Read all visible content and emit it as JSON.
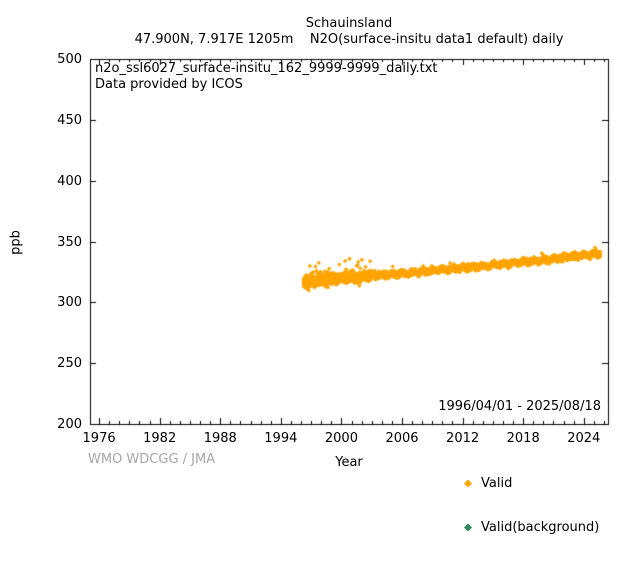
{
  "chart_data": {
    "type": "scatter",
    "title": "Schauinsland",
    "subtitle": "47.900N, 7.917E 1205m    N2O(surface-insitu data1 default) daily",
    "xlabel": "Year",
    "ylabel": "ppb",
    "xlim": [
      1975.1,
      2026.4
    ],
    "ylim": [
      200,
      500
    ],
    "xticks": [
      1976,
      1982,
      1988,
      1994,
      2000,
      2006,
      2012,
      2018,
      2024
    ],
    "x_minor_tick_step_years": 1,
    "yticks": [
      200,
      250,
      300,
      350,
      400,
      450,
      500
    ],
    "grid": false,
    "legend_position": "below-plot-right",
    "annotations": {
      "dataset_file": "n2o_ssl6027_surface-insitu_162_9999-9999_daily.txt",
      "provider": "Data provided by ICOS",
      "date_range": "1996/04/01 - 2025/08/18"
    },
    "attribution": "WMO WDCGG / JMA",
    "attribution_color": "#a6a6a6",
    "series": [
      {
        "name": "Valid",
        "color": "#ffa500",
        "marker": "diamond",
        "cadence": "daily",
        "x_range": [
          1996.25,
          2025.63
        ],
        "trend": {
          "years": [
            1996.25,
            1998,
            2000,
            2002,
            2004,
            2006,
            2008,
            2010,
            2012,
            2014,
            2016,
            2018,
            2020,
            2022,
            2024,
            2025.63
          ],
          "ppb": [
            316.5,
            318.0,
            319.8,
            321.0,
            322.3,
            323.7,
            325.2,
            326.8,
            328.2,
            329.7,
            331.4,
            333.0,
            334.8,
            336.8,
            338.6,
            339.8
          ]
        },
        "scatter_sigma_ppb": {
          "pre_1999": 2.3,
          "1999_2003": 1.8,
          "after_2003": 1.1
        },
        "early_upward_spikes_max_ppb": 338,
        "seasonal_amplitude_ppb": 0.8
      },
      {
        "name": "Valid(background)",
        "color": "#2e8b57",
        "marker": "diamond",
        "points_visible": false
      }
    ]
  }
}
